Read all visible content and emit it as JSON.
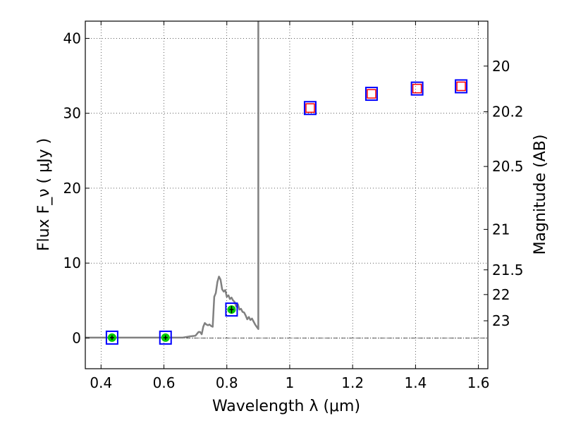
{
  "chart_data": {
    "type": "scatter",
    "xlabel": "Wavelength  λ (μm)",
    "ylabel": "Flux  F_ν  ( μJy )",
    "y2label": "Magnitude (AB)",
    "xlim": [
      0.35,
      1.63
    ],
    "ylim": [
      -4.1,
      42.3
    ],
    "xticks": [
      0.4,
      0.6,
      0.8,
      1.0,
      1.2,
      1.4,
      1.6
    ],
    "xtick_labels": [
      "0.4",
      "0.6",
      "0.8",
      "1",
      "1.2",
      "1.4",
      "1.6"
    ],
    "yticks": [
      0,
      10,
      20,
      30,
      40
    ],
    "ytick_labels": [
      "0",
      "10",
      "20",
      "30",
      "40"
    ],
    "y2ticks": [
      {
        "label": "20",
        "flux": 36.3
      },
      {
        "label": "20.2",
        "flux": 30.2
      },
      {
        "label": "20.5",
        "flux": 22.9
      },
      {
        "label": "21",
        "flux": 14.5
      },
      {
        "label": "21.5",
        "flux": 9.1
      },
      {
        "label": "22",
        "flux": 5.8
      },
      {
        "label": "23",
        "flux": 2.3
      }
    ],
    "grid": true,
    "zero_line": true,
    "colors": {
      "model": "#808080",
      "observed_marker": "#00cc00",
      "box": "#0000ff",
      "model_flux_box": "#ff0000"
    },
    "series": [
      {
        "kind": "model-spectrum",
        "x": [
          0.35,
          0.5,
          0.6,
          0.66,
          0.68,
          0.7,
          0.71,
          0.715,
          0.72,
          0.725,
          0.73,
          0.735,
          0.74,
          0.745,
          0.75,
          0.755,
          0.76,
          0.765,
          0.77,
          0.775,
          0.78,
          0.785,
          0.79,
          0.795,
          0.8,
          0.805,
          0.81,
          0.815,
          0.82,
          0.825,
          0.83,
          0.835,
          0.84,
          0.845,
          0.85,
          0.855,
          0.86,
          0.865,
          0.87,
          0.875,
          0.88,
          0.885,
          0.89,
          0.895,
          0.9,
          0.9,
          0.9
        ],
        "y": [
          0.05,
          0.05,
          0.05,
          0.05,
          0.2,
          0.3,
          0.8,
          0.8,
          0.5,
          1.5,
          2.0,
          1.8,
          1.7,
          1.8,
          1.6,
          1.5,
          5.5,
          6.0,
          7.5,
          8.2,
          7.8,
          6.5,
          6.2,
          6.4,
          5.5,
          5.7,
          5.2,
          5.4,
          5.0,
          4.8,
          4.2,
          4.5,
          3.8,
          3.9,
          3.5,
          3.4,
          3.0,
          2.5,
          2.8,
          2.4,
          2.6,
          2.2,
          1.8,
          1.5,
          1.2,
          20,
          42.3
        ]
      },
      {
        "kind": "observed",
        "x": [
          0.435,
          0.605,
          0.815
        ],
        "y": [
          0.05,
          0.05,
          3.8
        ],
        "yerr": [
          0.1,
          0.1,
          0.3
        ]
      },
      {
        "kind": "model-band-flux",
        "x": [
          0.435,
          0.605,
          0.815,
          1.065,
          1.26,
          1.405,
          1.545
        ],
        "y": [
          0.05,
          0.05,
          3.8,
          30.7,
          32.6,
          33.3,
          33.6
        ]
      }
    ]
  }
}
